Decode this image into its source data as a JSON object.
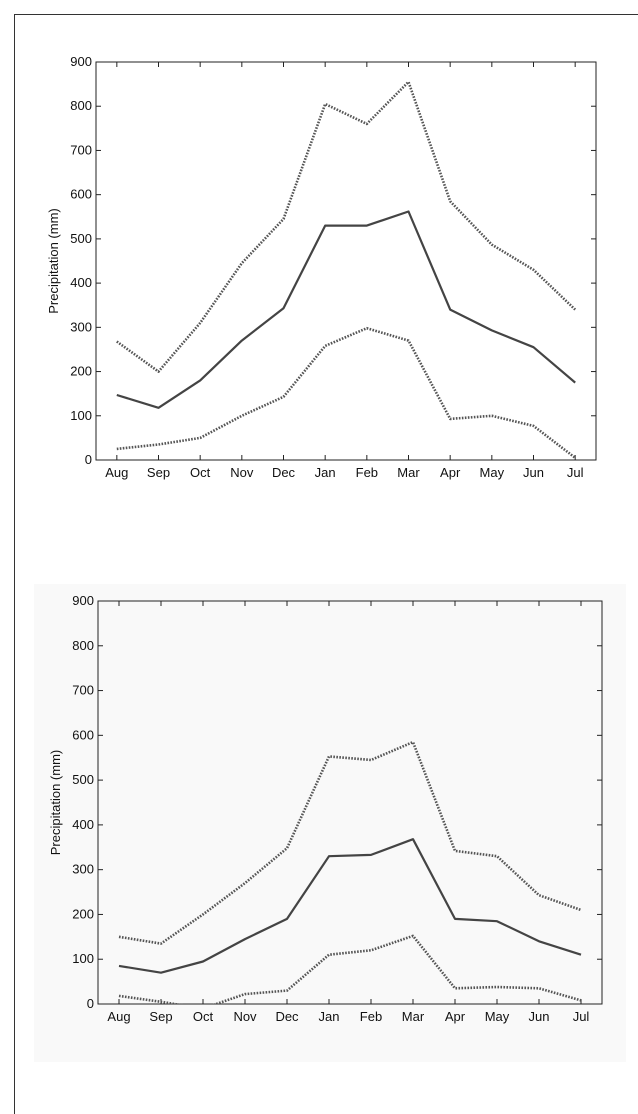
{
  "chart_data": [
    {
      "type": "line",
      "categories": [
        "Aug",
        "Sep",
        "Oct",
        "Nov",
        "Dec",
        "Jan",
        "Feb",
        "Mar",
        "Apr",
        "May",
        "Jun",
        "Jul"
      ],
      "ylabel": "Precipitation (mm)",
      "ylim": [
        0,
        900
      ],
      "yticks": [
        0,
        100,
        200,
        300,
        400,
        500,
        600,
        700,
        800,
        900
      ],
      "grid": false,
      "series": [
        {
          "style": "dotted",
          "values": [
            268,
            200,
            310,
            445,
            545,
            805,
            760,
            855,
            585,
            487,
            430,
            340
          ]
        },
        {
          "style": "solid",
          "values": [
            147,
            118,
            180,
            270,
            343,
            530,
            530,
            562,
            340,
            293,
            255,
            175
          ]
        },
        {
          "style": "dotted",
          "values": [
            25,
            35,
            50,
            100,
            143,
            258,
            298,
            270,
            93,
            100,
            77,
            5
          ]
        }
      ]
    },
    {
      "type": "line",
      "categories": [
        "Aug",
        "Sep",
        "Oct",
        "Nov",
        "Dec",
        "Jan",
        "Feb",
        "Mar",
        "Apr",
        "May",
        "Jun",
        "Jul"
      ],
      "ylabel": "Precipitation (mm)",
      "ylim": [
        0,
        900
      ],
      "yticks": [
        0,
        100,
        200,
        300,
        400,
        500,
        600,
        700,
        800,
        900
      ],
      "grid": false,
      "series": [
        {
          "style": "dotted",
          "values": [
            150,
            135,
            200,
            270,
            348,
            553,
            545,
            585,
            342,
            330,
            243,
            210
          ]
        },
        {
          "style": "solid",
          "values": [
            85,
            70,
            95,
            145,
            190,
            330,
            333,
            368,
            190,
            185,
            140,
            110
          ]
        },
        {
          "style": "dotted",
          "values": [
            18,
            5,
            -10,
            22,
            30,
            110,
            120,
            152,
            35,
            38,
            35,
            8
          ]
        }
      ]
    }
  ]
}
